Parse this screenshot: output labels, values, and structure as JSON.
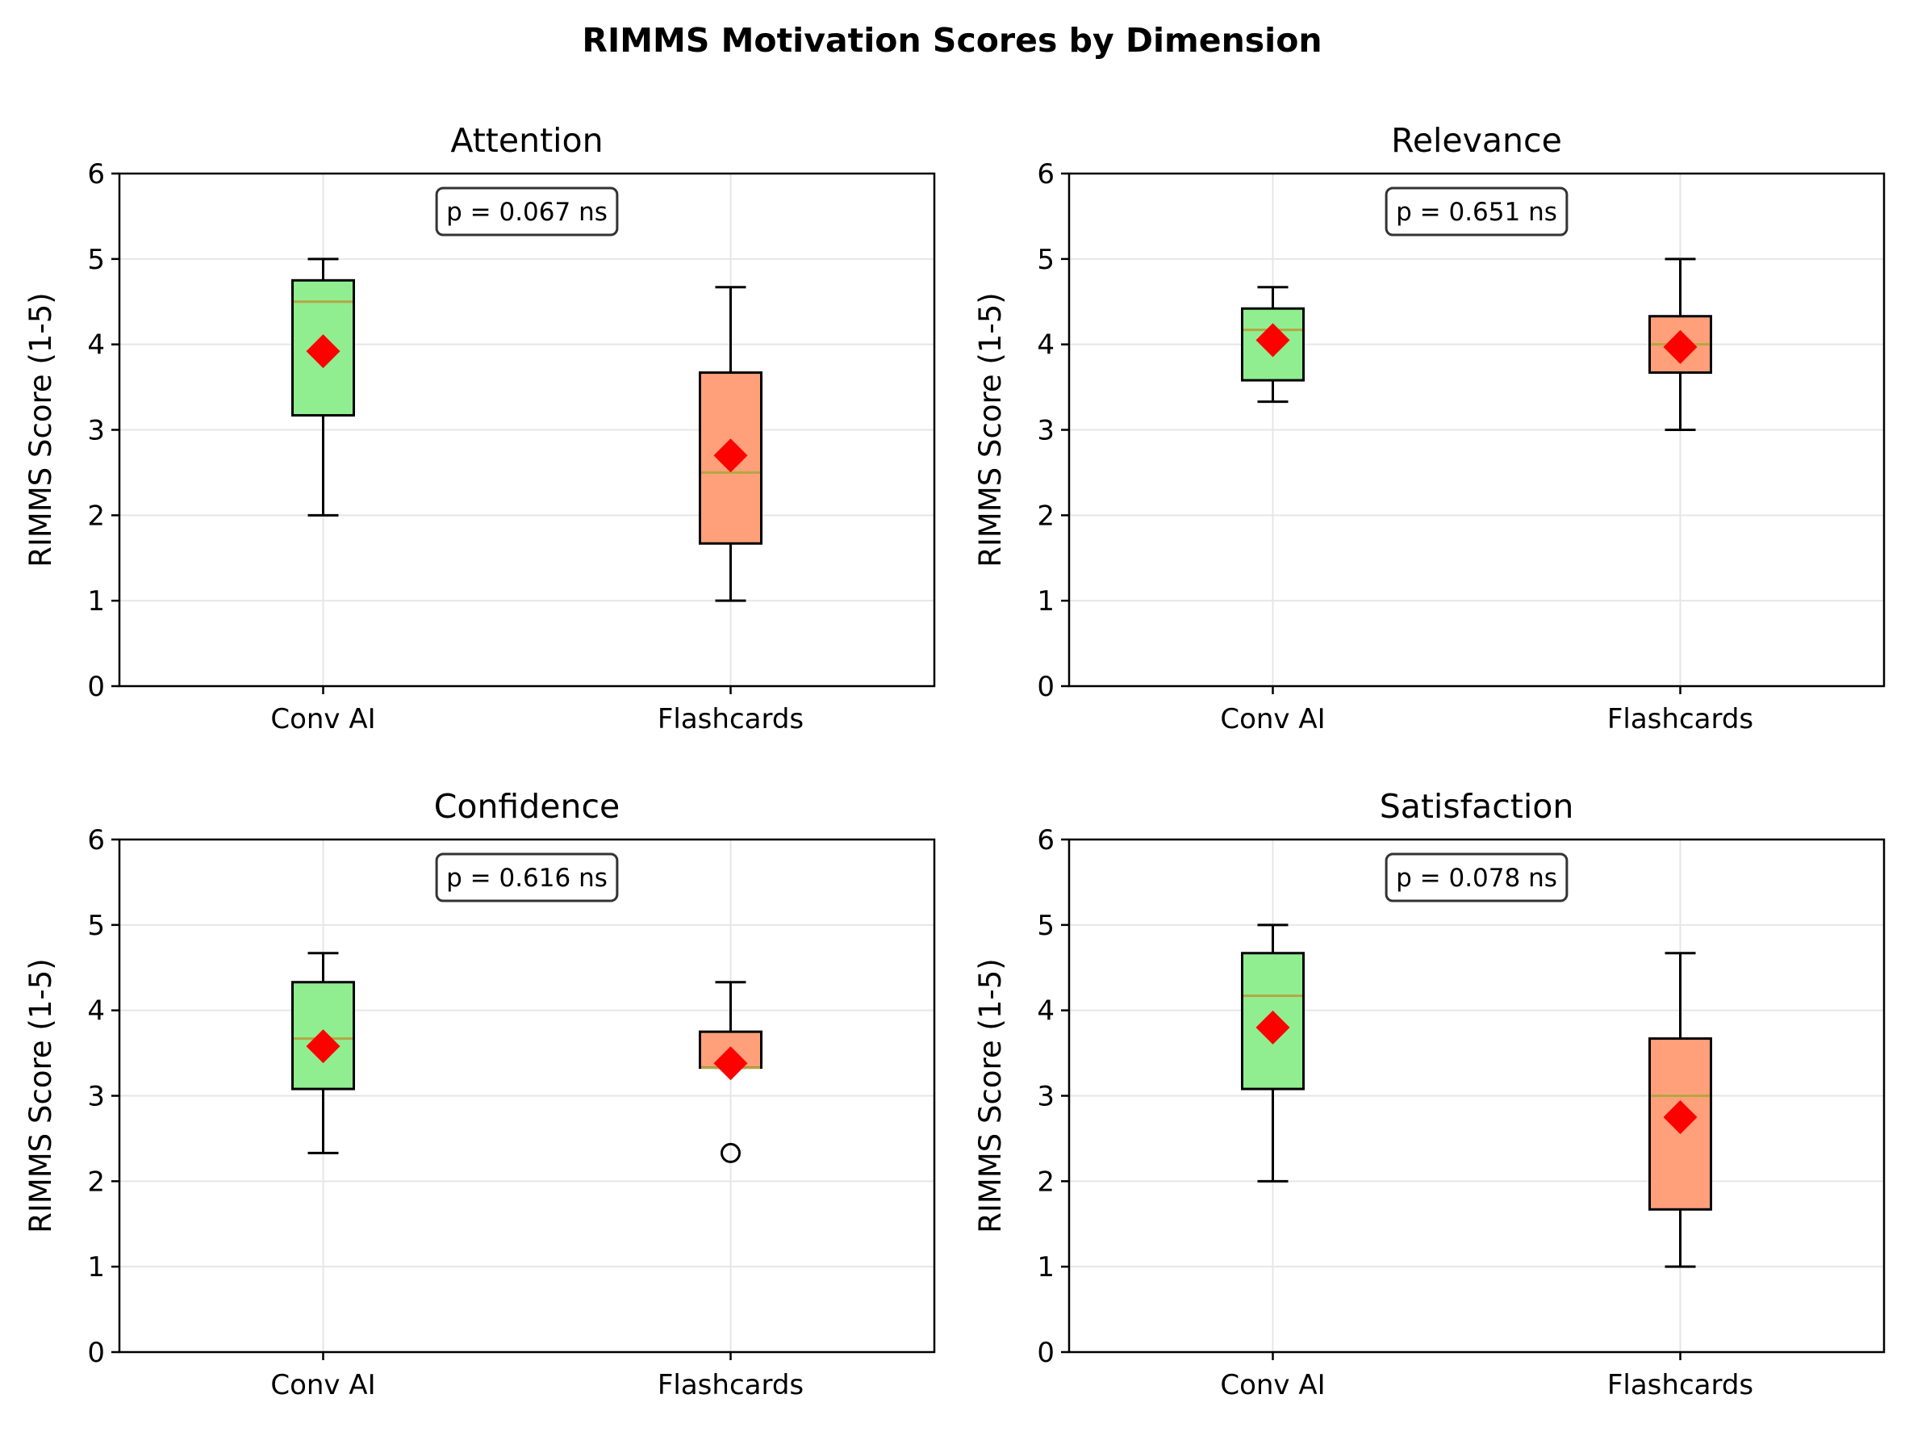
{
  "figure_title": "RIMMS Motivation Scores by Dimension",
  "colors": {
    "conv_ai_box": "#90ee90",
    "flashcards_box": "#ffa07a",
    "median": "#b5a642",
    "mean_marker": "#ff0000",
    "grid": "#e6e6e6"
  },
  "chart_data": [
    {
      "type": "box",
      "title": "Attention",
      "ylabel": "RIMMS Score (1-5)",
      "ylim": [
        0,
        6
      ],
      "yticks": [
        "0",
        "1",
        "2",
        "3",
        "4",
        "5",
        "6"
      ],
      "grid": true,
      "categories": [
        "Conv AI",
        "Flashcards"
      ],
      "annotation": "p = 0.067 ns",
      "boxes": [
        {
          "whisker_low": 2.0,
          "q1": 3.17,
          "median": 4.5,
          "q3": 4.75,
          "whisker_high": 5.0,
          "mean": 3.92,
          "outliers": []
        },
        {
          "whisker_low": 1.0,
          "q1": 1.67,
          "median": 2.5,
          "q3": 3.67,
          "whisker_high": 4.67,
          "mean": 2.7,
          "outliers": []
        }
      ]
    },
    {
      "type": "box",
      "title": "Relevance",
      "ylabel": "RIMMS Score (1-5)",
      "ylim": [
        0,
        6
      ],
      "yticks": [
        "0",
        "1",
        "2",
        "3",
        "4",
        "5",
        "6"
      ],
      "grid": true,
      "categories": [
        "Conv AI",
        "Flashcards"
      ],
      "annotation": "p = 0.651 ns",
      "boxes": [
        {
          "whisker_low": 3.33,
          "q1": 3.58,
          "median": 4.17,
          "q3": 4.42,
          "whisker_high": 4.67,
          "mean": 4.05,
          "outliers": []
        },
        {
          "whisker_low": 3.0,
          "q1": 3.67,
          "median": 4.0,
          "q3": 4.33,
          "whisker_high": 5.0,
          "mean": 3.97,
          "outliers": []
        }
      ]
    },
    {
      "type": "box",
      "title": "Confidence",
      "ylabel": "RIMMS Score (1-5)",
      "ylim": [
        0,
        6
      ],
      "yticks": [
        "0",
        "1",
        "2",
        "3",
        "4",
        "5",
        "6"
      ],
      "grid": true,
      "categories": [
        "Conv AI",
        "Flashcards"
      ],
      "annotation": "p = 0.616 ns",
      "boxes": [
        {
          "whisker_low": 2.33,
          "q1": 3.08,
          "median": 3.67,
          "q3": 4.33,
          "whisker_high": 4.67,
          "mean": 3.58,
          "outliers": []
        },
        {
          "whisker_low": 3.33,
          "q1": 3.33,
          "median": 3.33,
          "q3": 3.75,
          "whisker_high": 4.33,
          "mean": 3.38,
          "outliers": [
            2.33
          ]
        }
      ]
    },
    {
      "type": "box",
      "title": "Satisfaction",
      "ylabel": "RIMMS Score (1-5)",
      "ylim": [
        0,
        6
      ],
      "yticks": [
        "0",
        "1",
        "2",
        "3",
        "4",
        "5",
        "6"
      ],
      "grid": true,
      "categories": [
        "Conv AI",
        "Flashcards"
      ],
      "annotation": "p = 0.078 ns",
      "boxes": [
        {
          "whisker_low": 2.0,
          "q1": 3.08,
          "median": 4.17,
          "q3": 4.67,
          "whisker_high": 5.0,
          "mean": 3.8,
          "outliers": []
        },
        {
          "whisker_low": 1.0,
          "q1": 1.67,
          "median": 3.0,
          "q3": 3.67,
          "whisker_high": 4.67,
          "mean": 2.75,
          "outliers": []
        }
      ]
    }
  ]
}
